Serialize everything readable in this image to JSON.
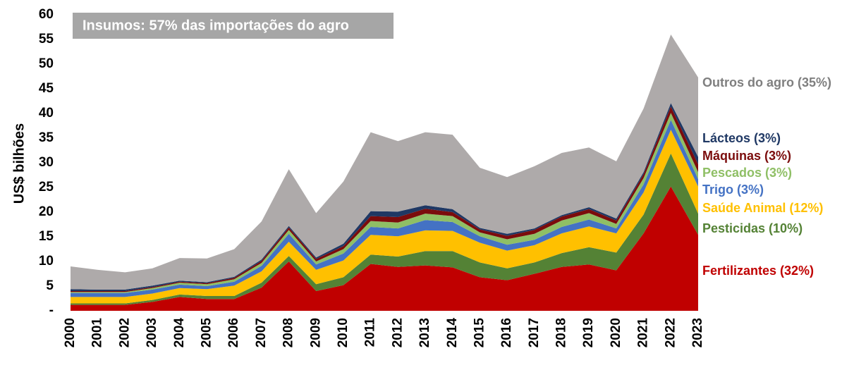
{
  "chart_data": {
    "type": "stacked-area",
    "annotation": "Insumos: 57% das importações do agro",
    "y_label": "US$ bilhões",
    "categories": [
      "2000",
      "2001",
      "2002",
      "2003",
      "2004",
      "2005",
      "2006",
      "2007",
      "2008",
      "2009",
      "2010",
      "2011",
      "2012",
      "2013",
      "2014",
      "2015",
      "2016",
      "2017",
      "2018",
      "2019",
      "2020",
      "2021",
      "2022",
      "2023"
    ],
    "ylim": [
      0,
      60
    ],
    "yticks": [
      {
        "value": 0,
        "label": "-"
      },
      5,
      10,
      15,
      20,
      25,
      30,
      35,
      40,
      45,
      50,
      55,
      60
    ],
    "series": [
      {
        "name": "Fertilizantes (32%)",
        "color": "#c00000",
        "values": [
          1.2,
          1.2,
          1.2,
          1.8,
          2.8,
          2.4,
          2.4,
          4.7,
          10.0,
          4.0,
          5.2,
          9.5,
          8.9,
          9.2,
          8.8,
          6.8,
          6.2,
          7.5,
          8.9,
          9.4,
          8.2,
          15.7,
          25.2,
          15.4
        ]
      },
      {
        "name": "Pesticidas (10%)",
        "color": "#548235",
        "values": [
          0.3,
          0.3,
          0.3,
          0.4,
          0.5,
          0.6,
          0.6,
          1.0,
          1.1,
          1.4,
          1.6,
          1.9,
          2.1,
          2.9,
          3.3,
          3.0,
          2.4,
          2.3,
          2.8,
          3.5,
          3.6,
          3.8,
          6.7,
          4.3
        ]
      },
      {
        "name": "Saúde Animal (12%)",
        "color": "#ffc000",
        "values": [
          1.3,
          1.3,
          1.3,
          1.3,
          1.3,
          1.4,
          2.1,
          2.3,
          2.9,
          2.9,
          3.4,
          4.0,
          4.1,
          4.2,
          4.1,
          4.0,
          3.6,
          3.5,
          4.0,
          4.2,
          3.9,
          4.5,
          4.8,
          5.5
        ]
      },
      {
        "name": "Trigo (3%)",
        "color": "#4472c4",
        "values": [
          0.8,
          0.8,
          0.8,
          0.8,
          0.7,
          0.6,
          0.8,
          1.1,
          1.6,
          1.1,
          1.4,
          1.6,
          1.6,
          2.1,
          1.8,
          1.3,
          1.2,
          1.1,
          1.3,
          1.4,
          1.0,
          1.6,
          2.0,
          1.5
        ]
      },
      {
        "name": "Pescados (3%)",
        "color": "#8fbf65",
        "values": [
          0.2,
          0.2,
          0.2,
          0.3,
          0.4,
          0.4,
          0.5,
          0.6,
          0.8,
          0.6,
          0.9,
          1.2,
          1.2,
          1.3,
          1.2,
          0.8,
          1.1,
          1.2,
          1.3,
          1.3,
          0.9,
          1.3,
          1.4,
          1.4
        ]
      },
      {
        "name": "Máquinas (3%)",
        "color": "#7b0c0c",
        "values": [
          0.2,
          0.2,
          0.2,
          0.2,
          0.2,
          0.2,
          0.3,
          0.4,
          0.5,
          0.5,
          0.6,
          1.0,
          1.1,
          1.0,
          0.8,
          0.6,
          0.7,
          0.8,
          0.8,
          0.8,
          0.7,
          0.8,
          1.3,
          1.6
        ]
      },
      {
        "name": "Lácteos (3%)",
        "color": "#1f3864",
        "values": [
          0.4,
          0.3,
          0.3,
          0.3,
          0.2,
          0.2,
          0.2,
          0.3,
          0.3,
          0.3,
          0.5,
          1.0,
          1.1,
          0.7,
          0.6,
          0.3,
          0.4,
          0.3,
          0.3,
          0.4,
          0.4,
          0.4,
          0.7,
          1.5
        ]
      },
      {
        "name": "Outros do agro (35%)",
        "color": "#aeaaaa",
        "values": [
          4.6,
          4.0,
          3.5,
          3.5,
          4.6,
          4.8,
          5.6,
          7.7,
          11.5,
          9.0,
          12.6,
          16.0,
          14.3,
          14.8,
          15.1,
          12.2,
          11.5,
          12.6,
          12.6,
          12.1,
          11.6,
          12.9,
          13.9,
          16.1
        ]
      }
    ]
  }
}
